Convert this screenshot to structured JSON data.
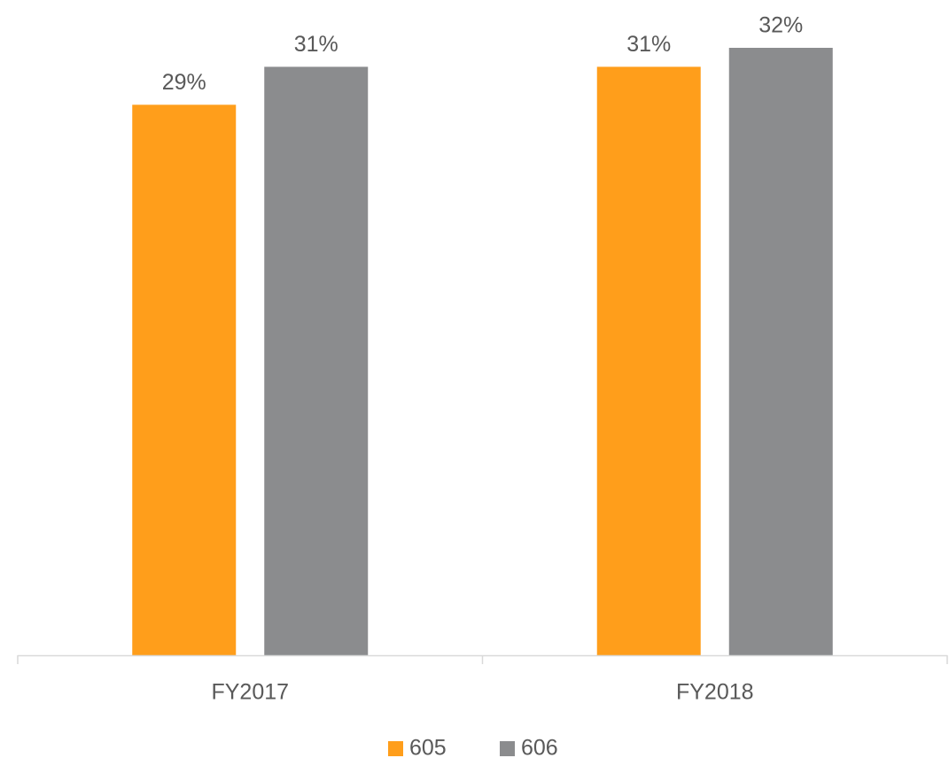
{
  "chart_data": {
    "type": "bar",
    "categories": [
      "FY2017",
      "FY2018"
    ],
    "series": [
      {
        "name": "605",
        "color": "#FF9E1B",
        "values": [
          29,
          31
        ],
        "value_labels": [
          "29%",
          "31%"
        ]
      },
      {
        "name": "606",
        "color": "#8B8C8E",
        "values": [
          31,
          32
        ],
        "value_labels": [
          "31%",
          "32%"
        ]
      }
    ],
    "ylim": [
      0,
      32
    ],
    "legend": "bottom"
  }
}
